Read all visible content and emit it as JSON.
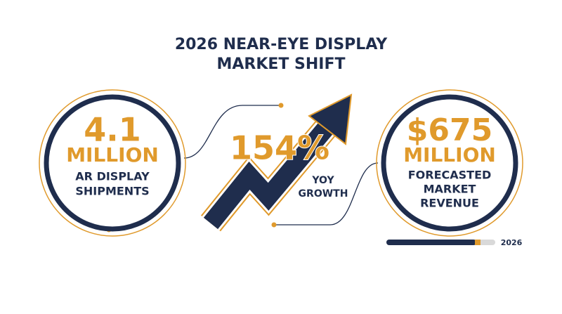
{
  "title": [
    "2026 NEAR-EYE DISPLAY",
    "MARKET SHIFT"
  ],
  "left_stat": {
    "value": "4.1",
    "unit": "MILLION",
    "label": [
      "AR DISPLAY",
      "SHIPMENTS"
    ]
  },
  "center_stat": {
    "value": "154%",
    "label": [
      "YOY",
      "GROWTH"
    ]
  },
  "right_stat": {
    "value": "$675",
    "unit": "MILLION",
    "label": [
      "FORECASTED",
      "MARKET",
      "REVENUE"
    ]
  },
  "timeline": {
    "label": "2026"
  }
}
